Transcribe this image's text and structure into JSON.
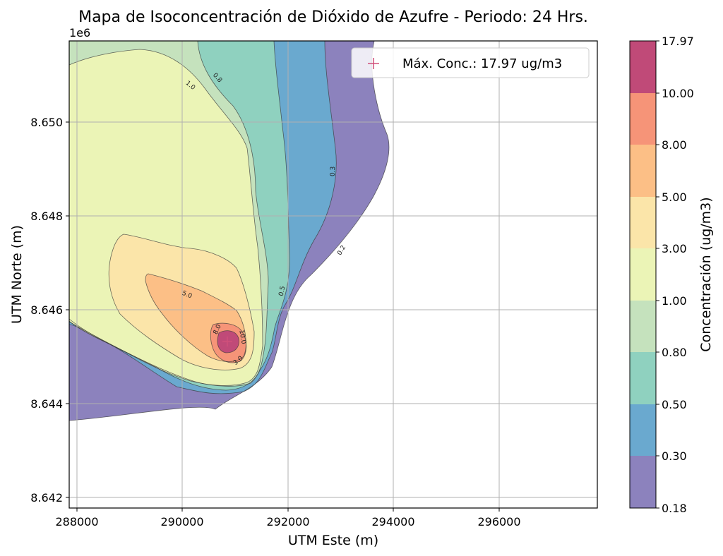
{
  "chart_data": {
    "type": "contour",
    "title": "Mapa de Isoconcentración de Dióxido de Azufre - Periodo: 24 Hrs.",
    "xlabel": "UTM Este (m)",
    "ylabel": "UTM Norte (m)",
    "y_offset_label": "1e6",
    "xlim": [
      287850,
      297850
    ],
    "ylim": [
      8641780,
      8651700
    ],
    "x_ticks": [
      288000,
      290000,
      292000,
      294000,
      296000
    ],
    "x_tick_labels": [
      "288000",
      "290000",
      "292000",
      "294000",
      "296000"
    ],
    "y_ticks": [
      8642000,
      8644000,
      8646000,
      8648000,
      8650000
    ],
    "y_tick_labels": [
      "8.642",
      "8.644",
      "8.646",
      "8.648",
      "8.650"
    ],
    "grid": true,
    "levels": [
      0.18,
      0.3,
      0.5,
      0.8,
      1.0,
      3.0,
      5.0,
      8.0,
      10.0,
      17.97
    ],
    "colorbar": {
      "label": "Concentración (ug/m3)",
      "tick_labels": [
        "0.18",
        "0.30",
        "0.50",
        "0.80",
        "1.00",
        "3.00",
        "5.00",
        "8.00",
        "10.00",
        "17.97"
      ],
      "colors": [
        "#8c82bd",
        "#6aa9cf",
        "#8fd1bf",
        "#c5e2bd",
        "#ebf4b6",
        "#fbe5a9",
        "#fcbf86",
        "#f69478",
        "#c04a78"
      ]
    },
    "contour_labels": [
      "1.0",
      "0.8",
      "0.3",
      "0.2",
      "0.5",
      "5.0",
      "8.0",
      "10.0",
      "3.0"
    ],
    "max_marker": {
      "x": 290900,
      "y": 8645280,
      "value": 17.97,
      "color": "#d0507a"
    },
    "legend": {
      "label": "Máx. Conc.: 17.97 ug/m3",
      "position": "top-right"
    }
  }
}
